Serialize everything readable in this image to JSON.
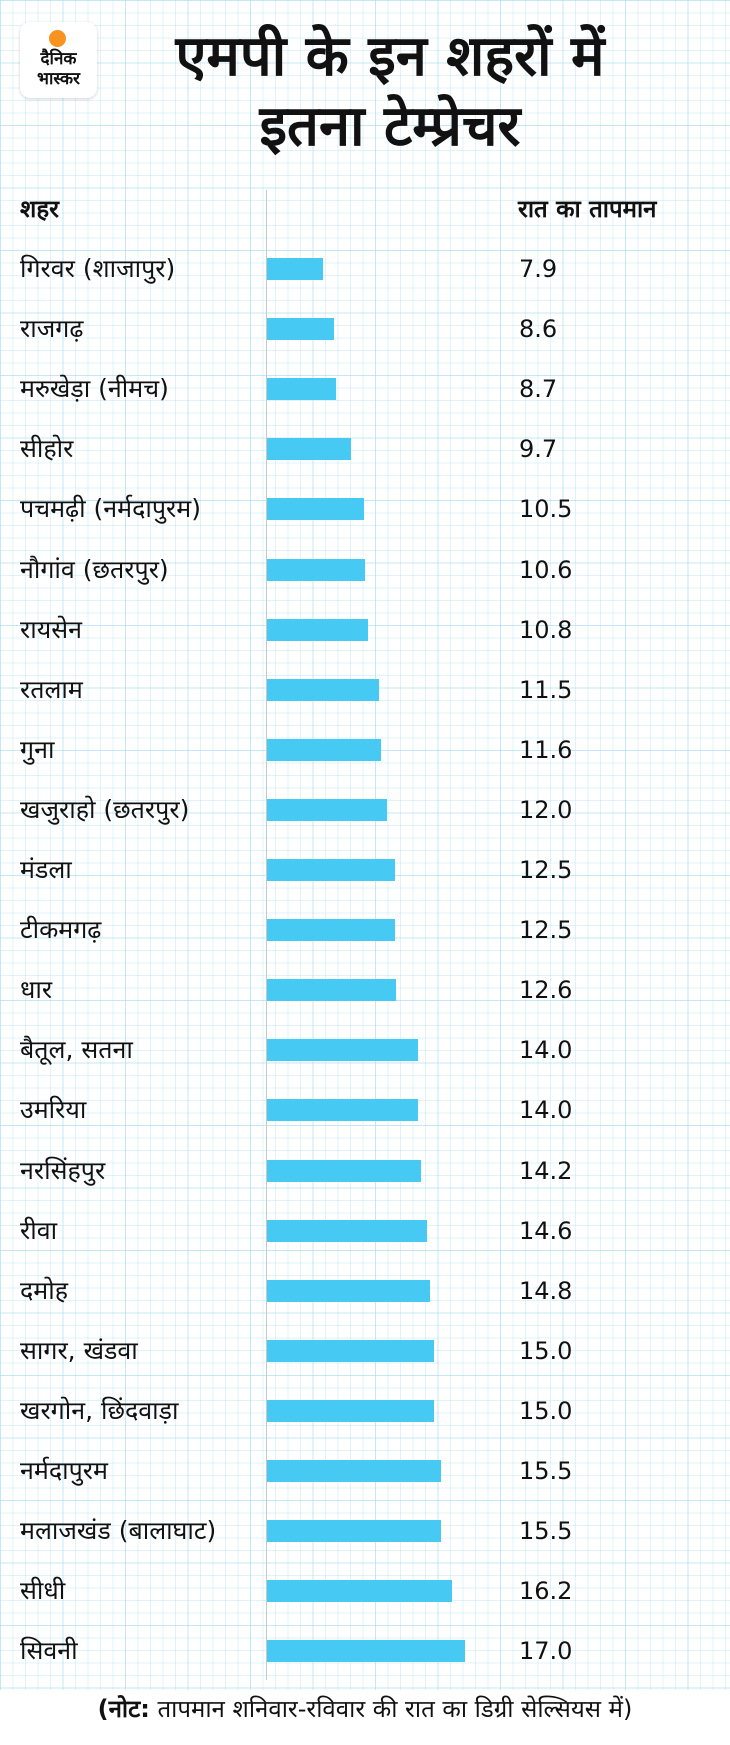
{
  "brand": {
    "line1": "दैनिक",
    "line2": "भास्कर",
    "sun_color": "#f7931e"
  },
  "title": {
    "line1": "एमपी के इन शहरों में",
    "line2": "इतना टेम्प्रेचर"
  },
  "note": {
    "bold": "(नोट:",
    "text": " तापमान शनिवार-रविवार की रात का डिग्री सेल्सियस में)"
  },
  "colors": {
    "bar": "#46c9f3",
    "grid": "#aadcf0"
  },
  "chart_data": {
    "type": "bar",
    "orientation": "horizontal",
    "title": "एमपी के इन शहरों में इतना टेम्प्रेचर",
    "category_header": "शहर",
    "value_header": "रात का तापमान",
    "unit": "डिग्री सेल्सियस",
    "categories": [
      "गिरवर (शाजापुर)",
      "राजगढ़",
      "मरुखेड़ा (नीमच)",
      "सीहोर",
      "पचमढ़ी (नर्मदापुरम)",
      "नौगांव (छतरपुर)",
      "रायसेन",
      "रतलाम",
      "गुना",
      "खजुराहो (छतरपुर)",
      "मंडला",
      "टीकमगढ़",
      "धार",
      "बैतूल, सतना",
      "उमरिया",
      "नरसिंहपुर",
      "रीवा",
      "दमोह",
      "सागर, खंडवा",
      "खरगोन, छिंदवाड़ा",
      "नर्मदापुरम",
      "मलाजखंड (बालाघाट)",
      "सीधी",
      "सिवनी"
    ],
    "values": [
      7.9,
      8.6,
      8.7,
      9.7,
      10.5,
      10.6,
      10.8,
      11.5,
      11.6,
      12.0,
      12.5,
      12.5,
      12.6,
      14.0,
      14.0,
      14.2,
      14.6,
      14.8,
      15.0,
      15.0,
      15.5,
      15.5,
      16.2,
      17.0
    ],
    "value_labels": [
      "7.9",
      "8.6",
      "8.7",
      "9.7",
      "10.5",
      "10.6",
      "10.8",
      "11.5",
      "11.6",
      "12.0",
      "12.5",
      "12.5",
      "12.6",
      "14.0",
      "14.0",
      "14.2",
      "14.6",
      "14.8",
      "15.0",
      "15.0",
      "15.5",
      "15.5",
      "16.2",
      "17.0"
    ],
    "xlabel": "",
    "ylabel": "",
    "grid": false,
    "legend": "none"
  }
}
